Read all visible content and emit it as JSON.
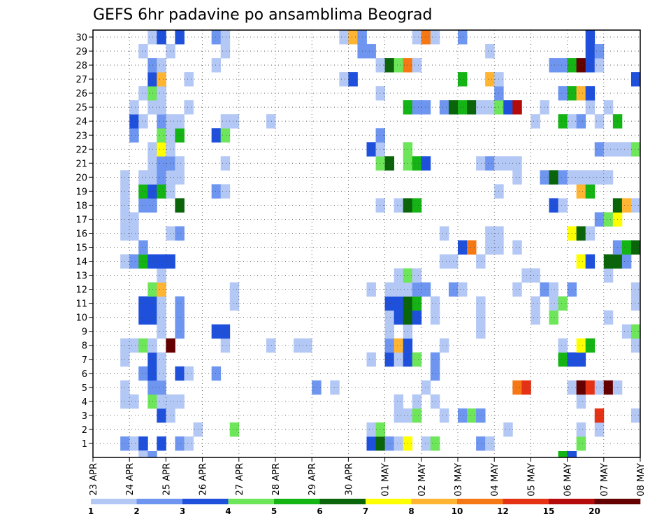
{
  "chart_data": {
    "type": "heatmap",
    "title": "GEFS 6hr padavine po ansamblima Beograd",
    "x_tick_labels": [
      "23 APR",
      "24 APR",
      "25 APR",
      "26 APR",
      "27 APR",
      "28 APR",
      "29 APR",
      "30 APR",
      "01 MAY",
      "02 MAY",
      "03 MAY",
      "04 MAY",
      "05 MAY",
      "06 MAY",
      "07 MAY",
      "08 MAY"
    ],
    "y_tick_labels": [
      "1",
      "2",
      "3",
      "4",
      "5",
      "6",
      "7",
      "8",
      "9",
      "10",
      "11",
      "12",
      "13",
      "14",
      "15",
      "16",
      "17",
      "18",
      "19",
      "20",
      "21",
      "22",
      "23",
      "24",
      "25",
      "26",
      "27",
      "28",
      "29",
      "30"
    ],
    "n_time_steps": 60,
    "grid": true,
    "legend": {
      "placement": "bottom",
      "colors": [
        "#b4c8f5",
        "#6e96f0",
        "#1e50dc",
        "#6ee65a",
        "#14b414",
        "#0a640a",
        "#ffff00",
        "#ffb432",
        "#f57814",
        "#e63214",
        "#b40a0a",
        "#640000"
      ],
      "labels": [
        "1",
        "2",
        "3",
        "4",
        "5",
        "6",
        "7",
        "8",
        "10",
        "12",
        "15",
        "20"
      ]
    },
    "cells": [
      [
        1,
        3,
        2
      ],
      [
        1,
        4,
        1
      ],
      [
        1,
        5,
        3
      ],
      [
        1,
        7,
        3
      ],
      [
        1,
        9,
        2
      ],
      [
        1,
        10,
        1
      ],
      [
        1,
        30,
        3
      ],
      [
        1,
        31,
        6
      ],
      [
        1,
        32,
        2
      ],
      [
        1,
        33,
        1
      ],
      [
        1,
        34,
        7
      ],
      [
        1,
        36,
        1
      ],
      [
        1,
        37,
        4
      ],
      [
        1,
        42,
        2
      ],
      [
        1,
        43,
        1
      ],
      [
        1,
        53,
        4
      ],
      [
        2,
        11,
        1
      ],
      [
        2,
        15,
        4
      ],
      [
        2,
        30,
        1
      ],
      [
        2,
        31,
        4
      ],
      [
        2,
        45,
        1
      ],
      [
        2,
        53,
        1
      ],
      [
        2,
        55,
        1
      ],
      [
        3,
        7,
        3
      ],
      [
        3,
        8,
        1
      ],
      [
        3,
        33,
        1
      ],
      [
        3,
        34,
        1
      ],
      [
        3,
        35,
        4
      ],
      [
        3,
        38,
        1
      ],
      [
        3,
        40,
        2
      ],
      [
        3,
        41,
        4
      ],
      [
        3,
        42,
        2
      ],
      [
        3,
        55,
        10
      ],
      [
        3,
        59,
        1
      ],
      [
        4,
        3,
        1
      ],
      [
        4,
        4,
        1
      ],
      [
        4,
        6,
        4
      ],
      [
        4,
        7,
        1
      ],
      [
        4,
        8,
        1
      ],
      [
        4,
        9,
        1
      ],
      [
        4,
        33,
        1
      ],
      [
        4,
        35,
        1
      ],
      [
        4,
        37,
        1
      ],
      [
        4,
        53,
        1
      ],
      [
        5,
        3,
        1
      ],
      [
        5,
        6,
        2
      ],
      [
        5,
        7,
        2
      ],
      [
        5,
        24,
        2
      ],
      [
        5,
        26,
        1
      ],
      [
        5,
        36,
        1
      ],
      [
        5,
        46,
        9
      ],
      [
        5,
        47,
        10
      ],
      [
        5,
        52,
        1
      ],
      [
        5,
        53,
        12
      ],
      [
        5,
        54,
        10
      ],
      [
        5,
        55,
        1
      ],
      [
        5,
        56,
        12
      ],
      [
        5,
        57,
        1
      ],
      [
        6,
        5,
        2
      ],
      [
        6,
        6,
        3
      ],
      [
        6,
        7,
        1
      ],
      [
        6,
        9,
        3
      ],
      [
        6,
        10,
        1
      ],
      [
        6,
        13,
        2
      ],
      [
        6,
        37,
        2
      ],
      [
        7,
        3,
        1
      ],
      [
        7,
        6,
        3
      ],
      [
        7,
        7,
        1
      ],
      [
        7,
        30,
        1
      ],
      [
        7,
        32,
        3
      ],
      [
        7,
        33,
        1
      ],
      [
        7,
        34,
        3
      ],
      [
        7,
        35,
        4
      ],
      [
        7,
        37,
        2
      ],
      [
        7,
        51,
        5
      ],
      [
        7,
        52,
        3
      ],
      [
        7,
        53,
        3
      ],
      [
        8,
        3,
        1
      ],
      [
        8,
        4,
        1
      ],
      [
        8,
        5,
        4
      ],
      [
        8,
        6,
        1
      ],
      [
        8,
        8,
        12
      ],
      [
        8,
        14,
        1
      ],
      [
        8,
        19,
        1
      ],
      [
        8,
        22,
        1
      ],
      [
        8,
        23,
        1
      ],
      [
        8,
        32,
        2
      ],
      [
        8,
        33,
        8
      ],
      [
        8,
        34,
        3
      ],
      [
        8,
        38,
        1
      ],
      [
        8,
        51,
        1
      ],
      [
        8,
        53,
        7
      ],
      [
        8,
        54,
        5
      ],
      [
        8,
        59,
        1
      ],
      [
        9,
        7,
        1
      ],
      [
        9,
        9,
        2
      ],
      [
        9,
        13,
        3
      ],
      [
        9,
        14,
        3
      ],
      [
        9,
        32,
        1
      ],
      [
        9,
        34,
        1
      ],
      [
        9,
        42,
        1
      ],
      [
        9,
        58,
        1
      ],
      [
        9,
        59,
        4
      ],
      [
        10,
        5,
        3
      ],
      [
        10,
        6,
        3
      ],
      [
        10,
        7,
        1
      ],
      [
        10,
        9,
        2
      ],
      [
        10,
        32,
        1
      ],
      [
        10,
        33,
        3
      ],
      [
        10,
        34,
        6
      ],
      [
        10,
        35,
        3
      ],
      [
        10,
        37,
        1
      ],
      [
        10,
        42,
        1
      ],
      [
        10,
        48,
        1
      ],
      [
        10,
        50,
        4
      ],
      [
        10,
        56,
        1
      ],
      [
        11,
        5,
        3
      ],
      [
        11,
        6,
        3
      ],
      [
        11,
        7,
        1
      ],
      [
        11,
        9,
        2
      ],
      [
        11,
        15,
        1
      ],
      [
        11,
        32,
        3
      ],
      [
        11,
        33,
        3
      ],
      [
        11,
        34,
        6
      ],
      [
        11,
        35,
        5
      ],
      [
        11,
        37,
        1
      ],
      [
        11,
        42,
        1
      ],
      [
        11,
        48,
        1
      ],
      [
        11,
        50,
        1
      ],
      [
        11,
        51,
        4
      ],
      [
        11,
        59,
        1
      ],
      [
        12,
        6,
        4
      ],
      [
        12,
        7,
        8
      ],
      [
        12,
        15,
        1
      ],
      [
        12,
        30,
        1
      ],
      [
        12,
        32,
        1
      ],
      [
        12,
        33,
        1
      ],
      [
        12,
        34,
        1
      ],
      [
        12,
        35,
        2
      ],
      [
        12,
        36,
        2
      ],
      [
        12,
        39,
        2
      ],
      [
        12,
        40,
        1
      ],
      [
        12,
        46,
        1
      ],
      [
        12,
        49,
        2
      ],
      [
        12,
        50,
        1
      ],
      [
        12,
        52,
        2
      ],
      [
        12,
        59,
        1
      ],
      [
        13,
        7,
        1
      ],
      [
        13,
        33,
        1
      ],
      [
        13,
        34,
        4
      ],
      [
        13,
        35,
        1
      ],
      [
        13,
        47,
        1
      ],
      [
        13,
        48,
        1
      ],
      [
        13,
        56,
        1
      ],
      [
        14,
        3,
        1
      ],
      [
        14,
        4,
        2
      ],
      [
        14,
        5,
        5
      ],
      [
        14,
        6,
        3
      ],
      [
        14,
        7,
        3
      ],
      [
        14,
        8,
        3
      ],
      [
        14,
        38,
        1
      ],
      [
        14,
        39,
        1
      ],
      [
        14,
        42,
        1
      ],
      [
        14,
        53,
        7
      ],
      [
        14,
        54,
        3
      ],
      [
        14,
        56,
        6
      ],
      [
        14,
        57,
        6
      ],
      [
        14,
        58,
        2
      ],
      [
        15,
        5,
        2
      ],
      [
        15,
        40,
        3
      ],
      [
        15,
        41,
        9
      ],
      [
        15,
        43,
        1
      ],
      [
        15,
        44,
        1
      ],
      [
        15,
        46,
        1
      ],
      [
        15,
        57,
        2
      ],
      [
        15,
        58,
        5
      ],
      [
        15,
        59,
        6
      ],
      [
        16,
        3,
        1
      ],
      [
        16,
        4,
        1
      ],
      [
        16,
        8,
        1
      ],
      [
        16,
        9,
        2
      ],
      [
        16,
        38,
        1
      ],
      [
        16,
        43,
        1
      ],
      [
        16,
        44,
        1
      ],
      [
        16,
        52,
        7
      ],
      [
        16,
        53,
        6
      ],
      [
        16,
        54,
        1
      ],
      [
        17,
        3,
        1
      ],
      [
        17,
        4,
        1
      ],
      [
        17,
        55,
        2
      ],
      [
        17,
        56,
        4
      ],
      [
        17,
        57,
        7
      ],
      [
        18,
        3,
        1
      ],
      [
        18,
        5,
        2
      ],
      [
        18,
        6,
        2
      ],
      [
        18,
        9,
        6
      ],
      [
        18,
        31,
        1
      ],
      [
        18,
        33,
        1
      ],
      [
        18,
        34,
        6
      ],
      [
        18,
        35,
        5
      ],
      [
        18,
        50,
        3
      ],
      [
        18,
        51,
        1
      ],
      [
        18,
        57,
        6
      ],
      [
        18,
        58,
        8
      ],
      [
        18,
        59,
        1
      ],
      [
        19,
        3,
        1
      ],
      [
        19,
        5,
        5
      ],
      [
        19,
        6,
        3
      ],
      [
        19,
        7,
        5
      ],
      [
        19,
        8,
        1
      ],
      [
        19,
        13,
        2
      ],
      [
        19,
        14,
        1
      ],
      [
        19,
        44,
        1
      ],
      [
        19,
        53,
        8
      ],
      [
        19,
        54,
        5
      ],
      [
        20,
        3,
        1
      ],
      [
        20,
        5,
        1
      ],
      [
        20,
        6,
        1
      ],
      [
        20,
        7,
        2
      ],
      [
        20,
        8,
        1
      ],
      [
        20,
        9,
        1
      ],
      [
        20,
        46,
        1
      ],
      [
        20,
        49,
        2
      ],
      [
        20,
        50,
        6
      ],
      [
        20,
        51,
        2
      ],
      [
        20,
        52,
        1
      ],
      [
        20,
        53,
        1
      ],
      [
        20,
        54,
        1
      ],
      [
        20,
        55,
        1
      ],
      [
        20,
        56,
        1
      ],
      [
        21,
        6,
        1
      ],
      [
        21,
        7,
        2
      ],
      [
        21,
        8,
        2
      ],
      [
        21,
        9,
        1
      ],
      [
        21,
        14,
        1
      ],
      [
        21,
        31,
        4
      ],
      [
        21,
        32,
        6
      ],
      [
        21,
        34,
        4
      ],
      [
        21,
        35,
        5
      ],
      [
        21,
        36,
        3
      ],
      [
        21,
        42,
        1
      ],
      [
        21,
        43,
        2
      ],
      [
        21,
        44,
        1
      ],
      [
        21,
        45,
        1
      ],
      [
        21,
        46,
        1
      ],
      [
        22,
        6,
        1
      ],
      [
        22,
        7,
        7
      ],
      [
        22,
        8,
        1
      ],
      [
        22,
        30,
        3
      ],
      [
        22,
        31,
        1
      ],
      [
        22,
        34,
        4
      ],
      [
        22,
        55,
        2
      ],
      [
        22,
        56,
        1
      ],
      [
        22,
        57,
        1
      ],
      [
        22,
        58,
        1
      ],
      [
        22,
        59,
        4
      ],
      [
        23,
        4,
        2
      ],
      [
        23,
        7,
        4
      ],
      [
        23,
        8,
        1
      ],
      [
        23,
        9,
        5
      ],
      [
        23,
        13,
        3
      ],
      [
        23,
        14,
        4
      ],
      [
        23,
        31,
        2
      ],
      [
        24,
        4,
        3
      ],
      [
        24,
        5,
        1
      ],
      [
        24,
        7,
        2
      ],
      [
        24,
        8,
        1
      ],
      [
        24,
        9,
        1
      ],
      [
        24,
        14,
        1
      ],
      [
        24,
        15,
        1
      ],
      [
        24,
        19,
        1
      ],
      [
        24,
        48,
        1
      ],
      [
        24,
        51,
        5
      ],
      [
        24,
        52,
        1
      ],
      [
        24,
        53,
        2
      ],
      [
        24,
        55,
        1
      ],
      [
        24,
        57,
        5
      ],
      [
        25,
        4,
        1
      ],
      [
        25,
        6,
        1
      ],
      [
        25,
        7,
        1
      ],
      [
        25,
        10,
        1
      ],
      [
        25,
        34,
        5
      ],
      [
        25,
        35,
        2
      ],
      [
        25,
        36,
        2
      ],
      [
        25,
        38,
        2
      ],
      [
        25,
        39,
        6
      ],
      [
        25,
        40,
        5
      ],
      [
        25,
        41,
        6
      ],
      [
        25,
        42,
        1
      ],
      [
        25,
        43,
        1
      ],
      [
        25,
        44,
        4
      ],
      [
        25,
        45,
        3
      ],
      [
        25,
        46,
        11
      ],
      [
        25,
        49,
        1
      ],
      [
        25,
        54,
        1
      ],
      [
        25,
        56,
        1
      ],
      [
        26,
        5,
        1
      ],
      [
        26,
        6,
        4
      ],
      [
        26,
        7,
        1
      ],
      [
        26,
        31,
        1
      ],
      [
        26,
        44,
        2
      ],
      [
        26,
        51,
        2
      ],
      [
        26,
        52,
        5
      ],
      [
        26,
        53,
        8
      ],
      [
        26,
        54,
        3
      ],
      [
        27,
        6,
        3
      ],
      [
        27,
        7,
        8
      ],
      [
        27,
        10,
        1
      ],
      [
        27,
        27,
        1
      ],
      [
        27,
        28,
        3
      ],
      [
        27,
        40,
        5
      ],
      [
        27,
        43,
        8
      ],
      [
        27,
        44,
        1
      ],
      [
        27,
        59,
        3
      ],
      [
        28,
        6,
        2
      ],
      [
        28,
        7,
        1
      ],
      [
        28,
        13,
        1
      ],
      [
        28,
        31,
        1
      ],
      [
        28,
        32,
        6
      ],
      [
        28,
        33,
        4
      ],
      [
        28,
        34,
        9
      ],
      [
        28,
        35,
        1
      ],
      [
        28,
        50,
        2
      ],
      [
        28,
        51,
        2
      ],
      [
        28,
        52,
        5
      ],
      [
        28,
        53,
        12
      ],
      [
        28,
        54,
        3
      ],
      [
        28,
        55,
        1
      ],
      [
        29,
        5,
        1
      ],
      [
        29,
        8,
        1
      ],
      [
        29,
        14,
        1
      ],
      [
        29,
        29,
        2
      ],
      [
        29,
        30,
        2
      ],
      [
        29,
        43,
        1
      ],
      [
        29,
        54,
        3
      ],
      [
        29,
        55,
        2
      ],
      [
        30,
        6,
        1
      ],
      [
        30,
        7,
        3
      ],
      [
        30,
        9,
        3
      ],
      [
        30,
        13,
        2
      ],
      [
        30,
        14,
        1
      ],
      [
        30,
        27,
        1
      ],
      [
        30,
        28,
        8
      ],
      [
        30,
        29,
        2
      ],
      [
        30,
        35,
        1
      ],
      [
        30,
        36,
        9
      ],
      [
        30,
        37,
        1
      ],
      [
        30,
        40,
        2
      ],
      [
        30,
        54,
        3
      ],
      [
        0,
        5,
        1
      ],
      [
        0,
        6,
        2
      ],
      [
        0,
        51,
        5
      ],
      [
        0,
        52,
        3
      ]
    ]
  }
}
